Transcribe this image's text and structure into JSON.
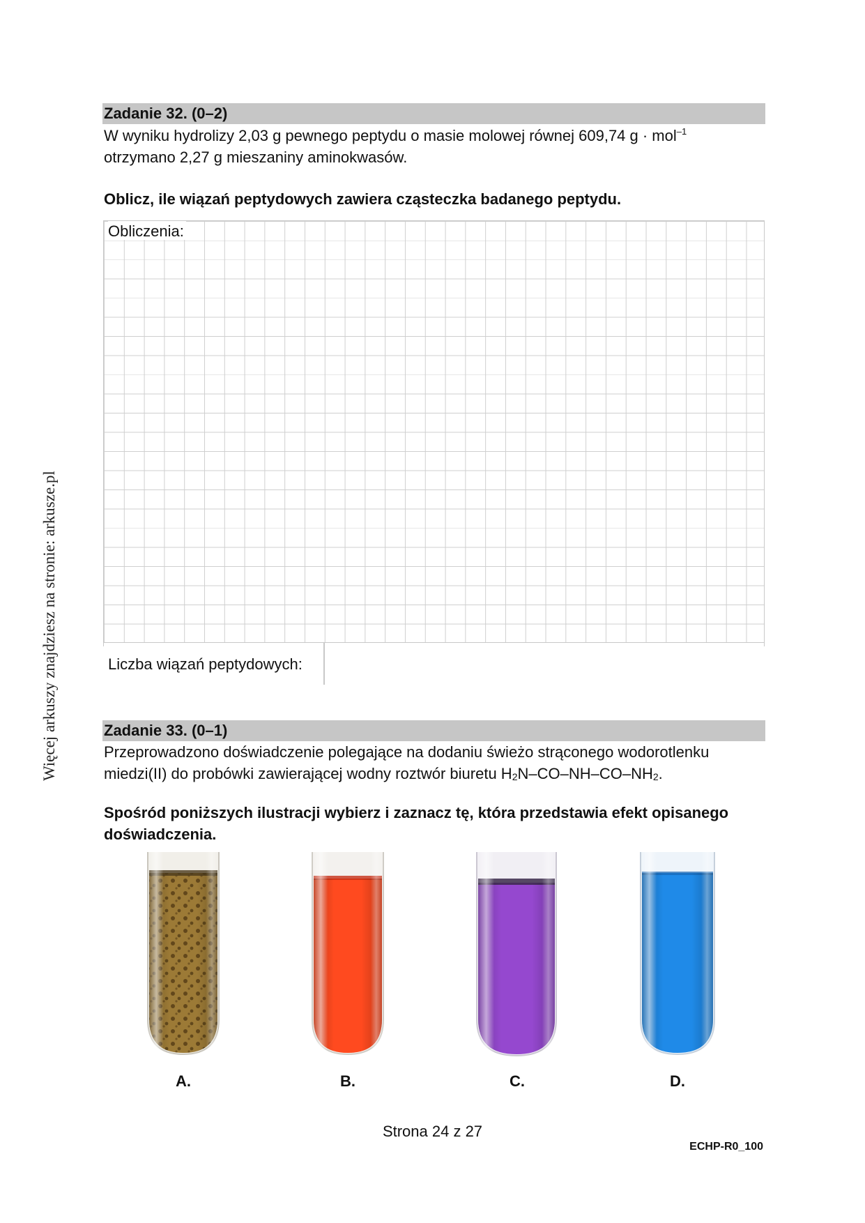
{
  "side_note": "Więcej arkuszy znajdziesz na stronie: arkusze.pl",
  "task32": {
    "header": "Zadanie 32. (0–2)",
    "intro_line1": "W wyniku hydrolizy 2,03 g pewnego peptydu o masie molowej równej 609,74 g · mol",
    "intro_line1_sup": "–1",
    "intro_line2": "otrzymano 2,27 g mieszaniny aminokwasów.",
    "instruction": "Oblicz, ile wiązań peptydowych zawiera cząsteczka badanego peptydu.",
    "calc_label": "Obliczenia:",
    "answer_label": "Liczba wiązań peptydowych:",
    "answer_value": ""
  },
  "task33": {
    "header": "Zadanie 33. (0–1)",
    "intro_line1": "Przeprowadzono doświadczenie polegające na dodaniu świeżo strąconego wodorotlenku",
    "intro_line2_a": "miedzi(II) do probówki zawierającej wodny roztwór biuretu H",
    "intro_line2_sub1": "2",
    "intro_line2_b": "N–CO–NH–CO–NH",
    "intro_line2_sub2": "2",
    "intro_line2_c": ".",
    "instruction_line1": "Spośród poniższych ilustracji wybierz i zaznacz tę, która przedstawia efekt opisanego",
    "instruction_line2": "doświadczenia.",
    "options": [
      {
        "label": "A.",
        "color": "#7a5a22",
        "icon": "test-tube-brown-precipitate"
      },
      {
        "label": "B.",
        "color": "#ff4a1f",
        "icon": "test-tube-red-orange"
      },
      {
        "label": "C.",
        "color": "#9548cf",
        "icon": "test-tube-violet"
      },
      {
        "label": "D.",
        "color": "#1f8ae8",
        "icon": "test-tube-blue"
      }
    ]
  },
  "footer": {
    "page": "Strona 24 z 27",
    "code": "ECHP-R0_100"
  }
}
